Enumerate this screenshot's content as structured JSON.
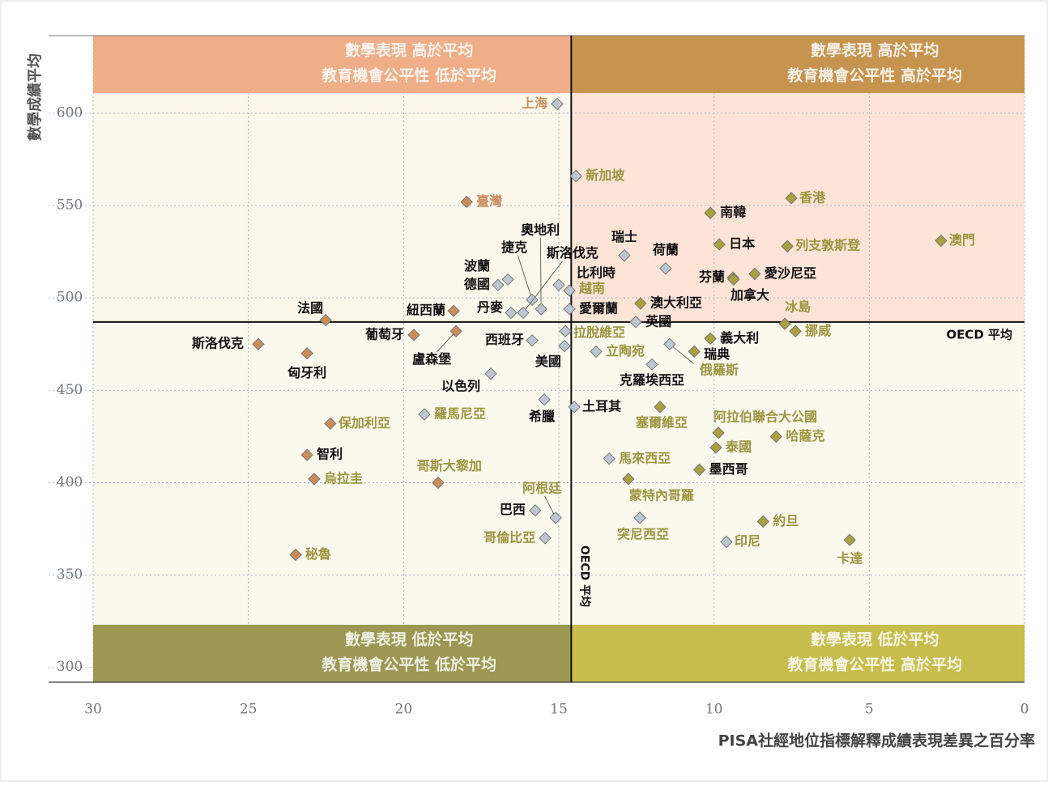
{
  "chart_data": {
    "type": "scatter",
    "ylabel": "數學成績平均",
    "xlabel": "PISA社經地位指標解釋成績表現差異之百分率",
    "xlim": [
      30,
      0
    ],
    "ylim": [
      292,
      642
    ],
    "xticks": [
      30,
      25,
      20,
      15,
      10,
      5,
      0
    ],
    "yticks": [
      300,
      350,
      400,
      450,
      500,
      550,
      600
    ],
    "grid": true,
    "reference_lines": {
      "x": 14.6,
      "y": 487,
      "x_label": "OECD 平均",
      "y_label": "OECD 平均"
    },
    "quadrants": [
      {
        "lines": [
          "數學表現  高於平均",
          "教育機會公平性  低於平均"
        ],
        "color": "#f0ae88"
      },
      {
        "lines": [
          "數學表現  高於平均",
          "教育機會公平性  高於平均"
        ],
        "color": "#c7944f"
      },
      {
        "lines": [
          "數學表現  低於平均",
          "教育機會公平性  低於平均"
        ],
        "color": "#9c9853"
      },
      {
        "lines": [
          "數學表現  低於平均",
          "教育機會公平性  高於平均"
        ],
        "color": "#c6bd4c"
      }
    ],
    "marker_colors": {
      "t": "#c98d5b",
      "o": "#a9a13f",
      "g": "#bcc7d2"
    },
    "label_colors": {
      "k": "#111111",
      "o": "#9c9540",
      "t": "#c88f62"
    },
    "points": [
      {
        "label": "上海",
        "x": 15.05,
        "y": 605,
        "marker": "g",
        "text": "t"
      },
      {
        "label": "新加坡",
        "x": 14.45,
        "y": 566,
        "marker": "g",
        "text": "o"
      },
      {
        "label": "臺灣",
        "x": 17.97,
        "y": 552,
        "marker": "t",
        "text": "t"
      },
      {
        "label": "香港",
        "x": 7.51,
        "y": 554,
        "marker": "o",
        "text": "o"
      },
      {
        "label": "南韓",
        "x": 10.12,
        "y": 546,
        "marker": "o",
        "text": "k"
      },
      {
        "label": "澳門",
        "x": 2.69,
        "y": 531,
        "marker": "o",
        "text": "o"
      },
      {
        "label": "日本",
        "x": 9.83,
        "y": 529,
        "marker": "o",
        "text": "k"
      },
      {
        "label": "列支敦斯登",
        "x": 7.64,
        "y": 528,
        "marker": "o",
        "text": "o"
      },
      {
        "label": "瑞士",
        "x": 12.89,
        "y": 523,
        "marker": "g",
        "text": "k"
      },
      {
        "label": "荷蘭",
        "x": 11.56,
        "y": 516,
        "marker": "g",
        "text": "k"
      },
      {
        "label": "芬蘭",
        "x": 9.39,
        "y": 511,
        "marker": "o",
        "text": "k"
      },
      {
        "label": "愛沙尼亞",
        "x": 8.69,
        "y": 513,
        "marker": "o",
        "text": "k"
      },
      {
        "label": "加拿大",
        "x": 9.37,
        "y": 510,
        "marker": "o",
        "text": "k"
      },
      {
        "label": "波蘭",
        "x": 16.64,
        "y": 510,
        "marker": "g",
        "text": "k"
      },
      {
        "label": "德國",
        "x": 16.96,
        "y": 507,
        "marker": "g",
        "text": "k"
      },
      {
        "label": "捷克",
        "x": 15.86,
        "y": 499,
        "marker": "g",
        "text": "k"
      },
      {
        "label": "奧地利",
        "x": 15.57,
        "y": 494,
        "marker": "g",
        "text": "k"
      },
      {
        "label": "斯洛伐克",
        "x": 16.15,
        "y": 492,
        "marker": "g",
        "text": "k"
      },
      {
        "label": "比利時",
        "x": 15.0,
        "y": 507,
        "marker": "g",
        "text": "k"
      },
      {
        "label": "越南",
        "x": 14.66,
        "y": 504,
        "marker": "g",
        "text": "o"
      },
      {
        "label": "丹麥",
        "x": 16.54,
        "y": 492,
        "marker": "g",
        "text": "k"
      },
      {
        "label": "愛爾蘭",
        "x": 14.66,
        "y": 494,
        "marker": "g",
        "text": "k"
      },
      {
        "label": "法國",
        "x": 22.51,
        "y": 488,
        "marker": "t",
        "text": "k"
      },
      {
        "label": "紐西蘭",
        "x": 18.39,
        "y": 493,
        "marker": "t",
        "text": "k"
      },
      {
        "label": "葡萄牙",
        "x": 19.67,
        "y": 480,
        "marker": "t",
        "text": "k"
      },
      {
        "label": "盧森堡",
        "x": 18.31,
        "y": 482,
        "marker": "t",
        "text": "k"
      },
      {
        "label": "斯洛伐克",
        "x": 24.68,
        "y": 475,
        "marker": "t",
        "text": "k"
      },
      {
        "label": "匈牙利",
        "x": 23.11,
        "y": 470,
        "marker": "t",
        "text": "k"
      },
      {
        "label": "西班牙",
        "x": 15.86,
        "y": 477,
        "marker": "g",
        "text": "k"
      },
      {
        "label": "拉脫維亞",
        "x": 14.79,
        "y": 482,
        "marker": "g",
        "text": "o"
      },
      {
        "label": "英國",
        "x": 12.52,
        "y": 487,
        "marker": "g",
        "text": "k"
      },
      {
        "label": "澳大利亞",
        "x": 12.37,
        "y": 497,
        "marker": "o",
        "text": "k"
      },
      {
        "label": "冰島",
        "x": 7.72,
        "y": 486,
        "marker": "o",
        "text": "o"
      },
      {
        "label": "挪威",
        "x": 7.38,
        "y": 482,
        "marker": "o",
        "text": "o"
      },
      {
        "label": "義大利",
        "x": 10.12,
        "y": 478,
        "marker": "o",
        "text": "k"
      },
      {
        "label": "瑞典",
        "x": 10.64,
        "y": 471,
        "marker": "o",
        "text": "k"
      },
      {
        "label": "俄羅斯",
        "x": 11.43,
        "y": 475,
        "marker": "g",
        "text": "o"
      },
      {
        "label": "立陶宛",
        "x": 13.8,
        "y": 471,
        "marker": "g",
        "text": "o"
      },
      {
        "label": "美國",
        "x": 14.82,
        "y": 474,
        "marker": "g",
        "text": "k"
      },
      {
        "label": "克羅埃西亞",
        "x": 12.0,
        "y": 464,
        "marker": "g",
        "text": "k"
      },
      {
        "label": "以色列",
        "x": 17.19,
        "y": 459,
        "marker": "g",
        "text": "k"
      },
      {
        "label": "希臘",
        "x": 15.47,
        "y": 445,
        "marker": "g",
        "text": "k"
      },
      {
        "label": "土耳其",
        "x": 14.5,
        "y": 441,
        "marker": "g",
        "text": "k"
      },
      {
        "label": "塞爾維亞",
        "x": 11.74,
        "y": 441,
        "marker": "o",
        "text": "o"
      },
      {
        "label": "羅馬尼亞",
        "x": 19.33,
        "y": 437,
        "marker": "g",
        "text": "o"
      },
      {
        "label": "保加利亞",
        "x": 22.36,
        "y": 432,
        "marker": "t",
        "text": "o"
      },
      {
        "label": "阿拉伯聯合大公國",
        "x": 9.86,
        "y": 427,
        "marker": "o",
        "text": "o"
      },
      {
        "label": "泰國",
        "x": 9.94,
        "y": 419,
        "marker": "o",
        "text": "o"
      },
      {
        "label": "哈薩克",
        "x": 8.0,
        "y": 425,
        "marker": "o",
        "text": "o"
      },
      {
        "label": "智利",
        "x": 23.11,
        "y": 415,
        "marker": "t",
        "text": "k"
      },
      {
        "label": "馬來西亞",
        "x": 13.38,
        "y": 413,
        "marker": "g",
        "text": "o"
      },
      {
        "label": "墨西哥",
        "x": 10.47,
        "y": 407,
        "marker": "o",
        "text": "k"
      },
      {
        "label": "烏拉圭",
        "x": 22.88,
        "y": 402,
        "marker": "t",
        "text": "o"
      },
      {
        "label": "哥斯大黎加",
        "x": 18.89,
        "y": 400,
        "marker": "t",
        "text": "o"
      },
      {
        "label": "蒙特內哥羅",
        "x": 12.76,
        "y": 402,
        "marker": "o",
        "text": "o"
      },
      {
        "label": "阿根廷",
        "x": 15.1,
        "y": 381,
        "marker": "g",
        "text": "o"
      },
      {
        "label": "巴西",
        "x": 15.76,
        "y": 385,
        "marker": "g",
        "text": "k"
      },
      {
        "label": "哥倫比亞",
        "x": 15.44,
        "y": 370,
        "marker": "g",
        "text": "o"
      },
      {
        "label": "突尼西亞",
        "x": 12.39,
        "y": 381,
        "marker": "g",
        "text": "o"
      },
      {
        "label": "約旦",
        "x": 8.42,
        "y": 379,
        "marker": "o",
        "text": "o"
      },
      {
        "label": "印尼",
        "x": 9.6,
        "y": 368,
        "marker": "g",
        "text": "o"
      },
      {
        "label": "卡達",
        "x": 5.63,
        "y": 369,
        "marker": "o",
        "text": "o"
      },
      {
        "label": "秘魯",
        "x": 23.48,
        "y": 361,
        "marker": "t",
        "text": "o"
      }
    ]
  }
}
